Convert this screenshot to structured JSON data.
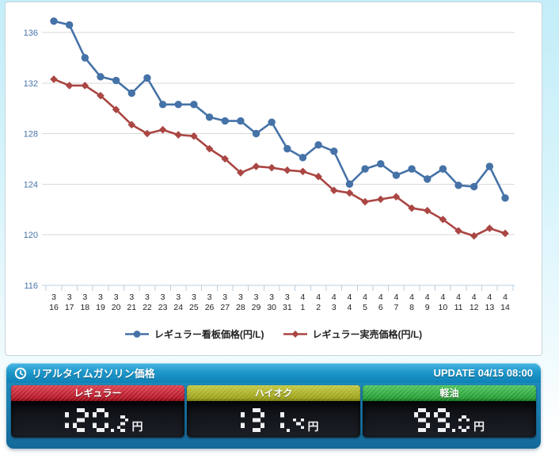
{
  "chart_data": {
    "type": "line",
    "x": [
      "3/16",
      "3/17",
      "3/18",
      "3/19",
      "3/20",
      "3/21",
      "3/22",
      "3/23",
      "3/24",
      "3/25",
      "3/26",
      "3/27",
      "3/28",
      "3/29",
      "3/30",
      "3/31",
      "4/1",
      "4/2",
      "4/3",
      "4/4",
      "4/5",
      "4/6",
      "4/7",
      "4/8",
      "4/9",
      "4/10",
      "4/11",
      "4/12",
      "4/13",
      "4/14"
    ],
    "series": [
      {
        "name": "レギュラー看板価格(円/L)",
        "marker": "circle",
        "color": "#4572a7",
        "values": [
          136.9,
          136.6,
          134.0,
          132.5,
          132.2,
          131.2,
          132.4,
          130.3,
          130.3,
          130.3,
          129.3,
          129.0,
          129.0,
          128.0,
          128.9,
          126.8,
          126.1,
          127.1,
          126.6,
          124.0,
          125.2,
          125.6,
          124.7,
          125.2,
          124.4,
          125.2,
          123.9,
          123.8,
          125.4,
          122.9
        ]
      },
      {
        "name": "レギュラー実売価格(円/L)",
        "marker": "diamond",
        "color": "#aa4643",
        "values": [
          132.3,
          131.8,
          131.8,
          131.0,
          129.9,
          128.7,
          128.0,
          128.3,
          127.9,
          127.8,
          126.8,
          126.0,
          124.9,
          125.4,
          125.3,
          125.1,
          125.0,
          124.6,
          123.5,
          123.3,
          122.6,
          122.8,
          123.0,
          122.1,
          121.9,
          121.2,
          120.3,
          119.9,
          120.5,
          120.1
        ]
      }
    ],
    "yticks": [
      116,
      120,
      124,
      128,
      132,
      136
    ],
    "ylim": [
      116,
      138
    ],
    "xlabel": "",
    "ylabel": "",
    "grid": true,
    "legend_position": "bottom"
  },
  "icons": {
    "ticker_header": "clock-icon"
  },
  "ticker": {
    "title": "リアルタイムガソリン価格",
    "update": "UPDATE 04/15 08:00",
    "items": [
      {
        "key": "regular",
        "label": "レギュラー",
        "value": "120.2",
        "unit": "円",
        "color": "#d00b1e"
      },
      {
        "key": "high-octane",
        "label": "ハイオク",
        "value": "131.4",
        "unit": "円",
        "color": "#b2b90d"
      },
      {
        "key": "diesel",
        "label": "軽油",
        "value": "99.0",
        "unit": "円",
        "color": "#1db32f"
      }
    ],
    "digit_color": "#eef0f2"
  }
}
